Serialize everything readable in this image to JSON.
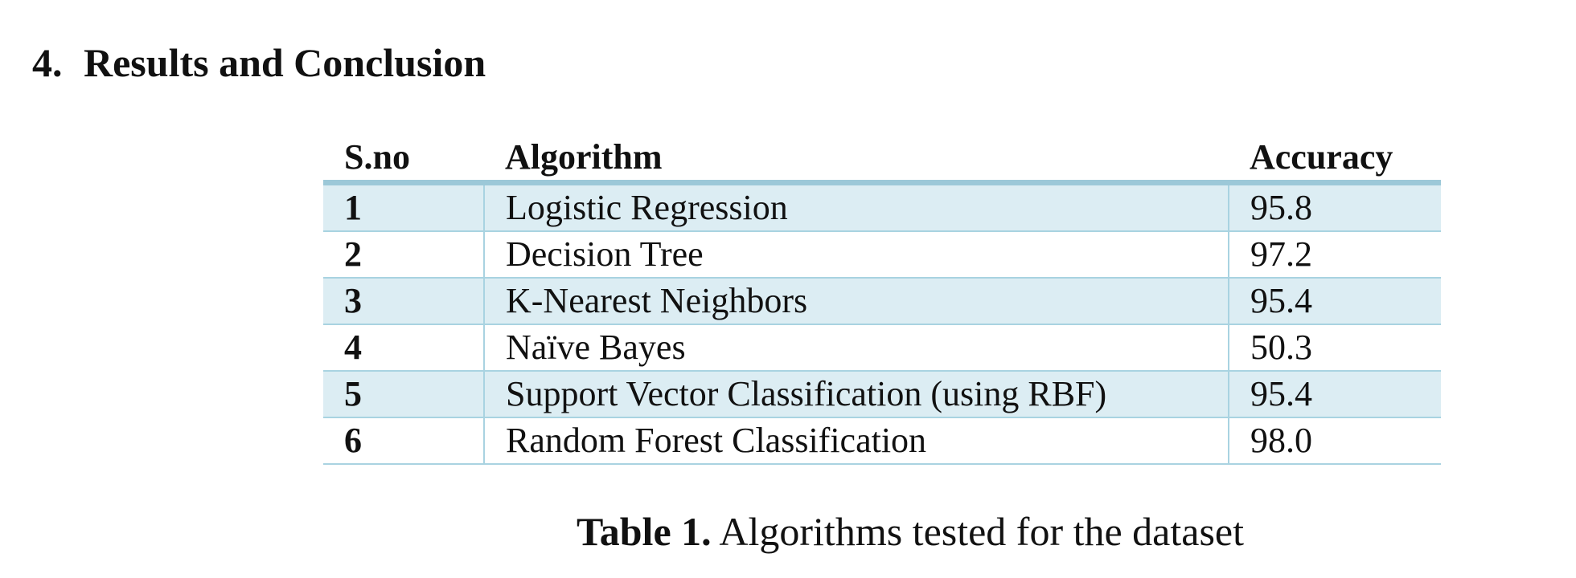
{
  "section": {
    "number": "4.",
    "title": "Results and Conclusion"
  },
  "table": {
    "headers": [
      "S.no",
      "Algorithm",
      "Accuracy"
    ],
    "rows": [
      {
        "sno": "1",
        "algorithm": "Logistic Regression",
        "accuracy": "95.8"
      },
      {
        "sno": "2",
        "algorithm": "Decision Tree",
        "accuracy": "97.2"
      },
      {
        "sno": "3",
        "algorithm": "K-Nearest Neighbors",
        "accuracy": "95.4"
      },
      {
        "sno": "4",
        "algorithm": "Naïve Bayes",
        "accuracy": "50.3"
      },
      {
        "sno": "5",
        "algorithm": "Support Vector Classification (using RBF)",
        "accuracy": "95.4"
      },
      {
        "sno": "6",
        "algorithm": "Random Forest Classification",
        "accuracy": "98.0"
      }
    ]
  },
  "caption": {
    "label": "Table 1.",
    "text": "Algorithms tested for the dataset"
  },
  "colors": {
    "row_shade": "#dcedf3",
    "rule": "#a9d3e1",
    "header_rule": "#9cc8d8"
  }
}
